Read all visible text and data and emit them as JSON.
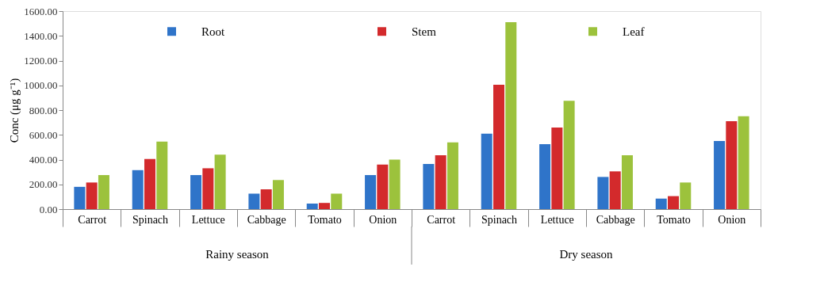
{
  "chart_data": {
    "type": "bar",
    "categories": [
      "Carrot",
      "Spinach",
      "Lettuce",
      "Cabbage",
      "Tomato",
      "Onion",
      "Carrot",
      "Spinach",
      "Lettuce",
      "Cabbage",
      "Tomato",
      "Onion"
    ],
    "series": [
      {
        "name": "Root",
        "color": "#2f74c9",
        "values": [
          180,
          315,
          275,
          125,
          45,
          275,
          365,
          610,
          525,
          260,
          85,
          550
        ]
      },
      {
        "name": "Stem",
        "color": "#d32a2c",
        "values": [
          215,
          405,
          330,
          160,
          50,
          360,
          435,
          1005,
          660,
          305,
          105,
          710
        ]
      },
      {
        "name": "Leaf",
        "color": "#9cc23c",
        "values": [
          275,
          545,
          440,
          235,
          125,
          400,
          540,
          1510,
          875,
          435,
          215,
          750
        ]
      }
    ],
    "ylabel": "Conc (μg g⁻¹)",
    "ylim": [
      0,
      1600
    ],
    "yticks": [
      {
        "value": 0,
        "label": "0.00"
      },
      {
        "value": 200,
        "label": "200.00"
      },
      {
        "value": 400,
        "label": "400.00"
      },
      {
        "value": 600,
        "label": "600.00"
      },
      {
        "value": 800,
        "label": "800.00"
      },
      {
        "value": 1000,
        "label": "1000.00"
      },
      {
        "value": 1200,
        "label": "1200.00"
      },
      {
        "value": 1400,
        "label": "1400.00"
      },
      {
        "value": 1600,
        "label": "1600.00"
      }
    ],
    "annotations": [
      "Rainy season",
      "Dry season"
    ],
    "legend": "top",
    "grid": false
  }
}
